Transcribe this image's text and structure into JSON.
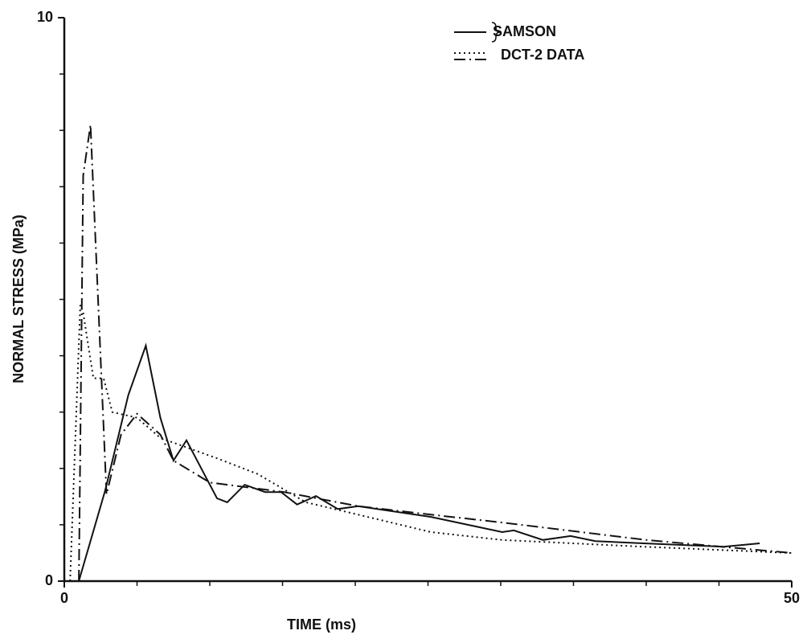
{
  "chart_data": {
    "type": "line",
    "xlabel": "TIME (ms)",
    "ylabel": "NORMAL STRESS (MPa)",
    "xlim": [
      0,
      50
    ],
    "ylim": [
      0,
      10
    ],
    "xticks": [
      0,
      50
    ],
    "yticks": [
      0,
      10
    ],
    "xminorticks": [
      5,
      10,
      15,
      20,
      25,
      30,
      35,
      40,
      45
    ],
    "yminorticks": [
      1,
      2,
      3,
      4,
      5,
      6,
      7,
      8,
      9
    ],
    "series": [
      {
        "name": "SAMSON",
        "color": "#111111",
        "style": "solid",
        "x": [
          1,
          2.8,
          4.4,
          5.6,
          6.6,
          7.5,
          8.4,
          10.5,
          11.2,
          12.4,
          13.8,
          14.9,
          16,
          17.3,
          18.8,
          20.2,
          25.2,
          30.1,
          30.9,
          32.9,
          34.8,
          36.5,
          39.8,
          45.3,
          47.8
        ],
        "values": [
          0,
          1.6,
          3.3,
          4.18,
          2.9,
          2.14,
          2.5,
          1.47,
          1.4,
          1.71,
          1.58,
          1.58,
          1.36,
          1.51,
          1.28,
          1.33,
          1.14,
          0.87,
          0.9,
          0.73,
          0.8,
          0.71,
          0.67,
          0.61,
          0.67
        ]
      },
      {
        "name": "DCT-2 DATA",
        "color": "#111111",
        "style": "dotted",
        "x": [
          0.4,
          1.1,
          1.3,
          2.0,
          2.7,
          3.3,
          5,
          6.6,
          10.5,
          13.3,
          16.6,
          20.2,
          25.2,
          30.1,
          39.8,
          50
        ],
        "values": [
          0,
          4.9,
          4.76,
          3.6,
          3.6,
          3.0,
          2.9,
          2.54,
          2.18,
          1.9,
          1.4,
          1.18,
          0.87,
          0.73,
          0.61,
          0.5
        ]
      },
      {
        "color": "#111111",
        "style": "dashdot",
        "x": [
          1,
          1.3,
          1.8,
          2.9,
          3.9,
          5,
          6.6,
          7.5,
          10,
          15.1,
          20.2,
          25.2,
          30.1,
          40,
          50
        ],
        "values": [
          0,
          7.2,
          8.1,
          1.54,
          2.6,
          2.97,
          2.6,
          2.14,
          1.75,
          1.58,
          1.33,
          1.18,
          1.04,
          0.73,
          0.5
        ]
      }
    ]
  }
}
